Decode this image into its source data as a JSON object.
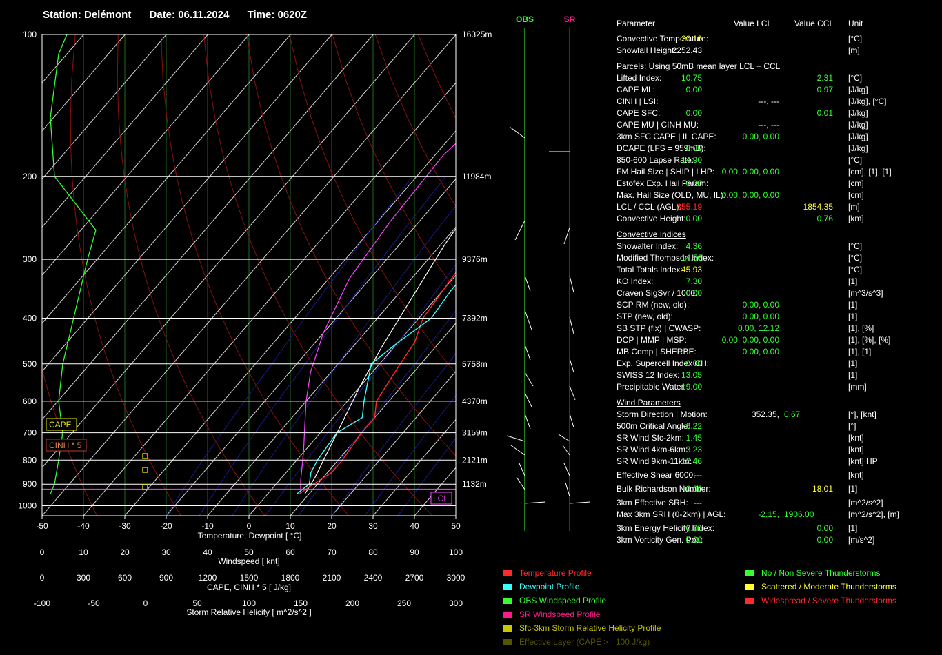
{
  "header": {
    "station": "Station: Delémont",
    "date": "Date: 06.11.2024",
    "time": "Time: 0620Z"
  },
  "chart_data": {
    "type": "line",
    "title": "",
    "xlabel": "Temperature, Dewpoint [ °C]",
    "x_ticks": [
      "-50",
      "-40",
      "-30",
      "-20",
      "-10",
      "0",
      "10",
      "20",
      "30",
      "40",
      "50"
    ],
    "p_ticks": [
      "100",
      "200",
      "300",
      "400",
      "500",
      "600",
      "700",
      "800",
      "900",
      "1000"
    ],
    "height_labels": [
      {
        "p": 100,
        "label": "16325m"
      },
      {
        "p": 200,
        "label": "11984m"
      },
      {
        "p": 300,
        "label": "9376m"
      },
      {
        "p": 400,
        "label": "7392m"
      },
      {
        "p": 500,
        "label": "5758m"
      },
      {
        "p": 600,
        "label": "4370m"
      },
      {
        "p": 700,
        "label": "3159m"
      },
      {
        "p": 800,
        "label": "2121m"
      },
      {
        "p": 900,
        "label": "1132m"
      }
    ],
    "xlim": [
      -50,
      50
    ],
    "plim": [
      100,
      1050
    ],
    "series": [
      {
        "name": "Temperature Profile",
        "color": "#ff2a2a",
        "points": [
          [
            7.6,
            945
          ],
          [
            9,
            900
          ],
          [
            11,
            850
          ],
          [
            11,
            800
          ],
          [
            10,
            700
          ],
          [
            10,
            650
          ],
          [
            7,
            600
          ],
          [
            5,
            500
          ],
          [
            4,
            450
          ],
          [
            1,
            400
          ],
          [
            -1,
            300
          ],
          [
            -2,
            270
          ],
          [
            3,
            230
          ],
          [
            12,
            200
          ],
          [
            20,
            170
          ],
          [
            30,
            140
          ],
          [
            37,
            120
          ],
          [
            50,
            105
          ]
        ]
      },
      {
        "name": "Dewpoint Profile",
        "color": "#33ffff",
        "points": [
          [
            7,
            945
          ],
          [
            8,
            900
          ],
          [
            6,
            850
          ],
          [
            5,
            800
          ],
          [
            4,
            700
          ],
          [
            7,
            650
          ],
          [
            4,
            600
          ],
          [
            -2,
            500
          ],
          [
            0,
            450
          ],
          [
            3,
            400
          ],
          [
            2,
            350
          ],
          [
            2,
            300
          ],
          [
            0,
            260
          ],
          [
            0,
            240
          ],
          [
            3,
            200
          ],
          [
            10,
            150
          ],
          [
            15,
            125
          ],
          [
            20,
            110
          ],
          [
            33,
            100
          ]
        ]
      },
      {
        "name": "OBS Windspeed Profile",
        "color": "#33ff33",
        "points": [
          [
            2,
            945
          ],
          [
            3,
            900
          ],
          [
            4,
            800
          ],
          [
            5,
            700
          ],
          [
            4,
            600
          ],
          [
            5,
            500
          ],
          [
            11,
            300
          ],
          [
            13,
            260
          ],
          [
            3,
            200
          ],
          [
            2,
            150
          ],
          [
            4,
            110
          ],
          [
            6,
            100
          ]
        ]
      }
    ],
    "parcel_curves": [
      {
        "color": "#ff44ff",
        "points": [
          [
            8,
            945
          ],
          [
            5,
            880
          ],
          [
            0,
            770
          ],
          [
            -5,
            680
          ],
          [
            -10,
            600
          ],
          [
            -15,
            520
          ],
          [
            -20,
            430
          ],
          [
            -25,
            330
          ],
          [
            -27,
            250
          ],
          [
            -28,
            180
          ],
          [
            -25,
            140
          ],
          [
            -20,
            100
          ]
        ]
      },
      {
        "color": "#ffffff",
        "points": [
          [
            9,
            945
          ],
          [
            8,
            870
          ],
          [
            6,
            780
          ],
          [
            3,
            660
          ],
          [
            0,
            560
          ],
          [
            -3,
            460
          ],
          [
            -6,
            360
          ],
          [
            -9,
            280
          ],
          [
            -11,
            220
          ],
          [
            -11,
            170
          ],
          [
            -9,
            130
          ],
          [
            -5,
            100
          ]
        ]
      }
    ],
    "cape_labels": {
      "cape": "CAPE",
      "cinh": "CINH * 5",
      "lcl": "LCL"
    },
    "axes": {
      "windspeed": {
        "label": "Windspeed [ knt]",
        "ticks": [
          "0",
          "10",
          "20",
          "30",
          "40",
          "50",
          "60",
          "70",
          "80",
          "90",
          "100"
        ]
      },
      "cape": {
        "label": "CAPE, CINH * 5 [ J/kg]",
        "ticks": [
          "0",
          "300",
          "600",
          "900",
          "1200",
          "1500",
          "1800",
          "2100",
          "2400",
          "2700",
          "3000"
        ]
      },
      "srh": {
        "label": "Storm Relative Helicity [ m^2/s^2 ]",
        "ticks": [
          "-100",
          "-50",
          "0",
          "50",
          "100",
          "150",
          "200",
          "250",
          "300"
        ]
      }
    }
  },
  "wind_columns": {
    "obs_label": "OBS",
    "sr_label": "SR"
  },
  "params": {
    "header": {
      "parameter": "Parameter",
      "lcl": "Value LCL",
      "ccl": "Value CCL",
      "unit": "Unit"
    },
    "sections": [
      {
        "title": "",
        "rows": [
          {
            "label": "Convective Temperature:",
            "v1": "20.10",
            "c1": "#ffff33",
            "v2": "",
            "c2": "",
            "unit": "[°C]"
          },
          {
            "label": "Snowfall Height:",
            "v1": "2252.43",
            "c1": "#ffffff",
            "v2": "",
            "c2": "",
            "unit": "[m]"
          }
        ]
      },
      {
        "title": "Parcels: Using 50mB mean layer LCL + CCL",
        "rows": [
          {
            "label": "Lifted Index:",
            "v1": "10.75",
            "c1": "#33ff33",
            "v2": "2.31",
            "c2": "#33ff33",
            "unit": "[°C]"
          },
          {
            "label": "CAPE ML:",
            "v1": "0.00",
            "c1": "#33ff33",
            "v2": "0.97",
            "c2": "#33ff33",
            "unit": "[J/kg]"
          },
          {
            "label": "CINH | LSI:",
            "v1": "---,  ---",
            "c1": "#ffffff",
            "v2": "",
            "c2": "",
            "unit": "[J/kg], [°C]",
            "wide": true
          },
          {
            "label": "CAPE SFC:",
            "v1": "0.00",
            "c1": "#33ff33",
            "v2": "0.01",
            "c2": "#33ff33",
            "unit": "[J/kg]"
          },
          {
            "label": "CAPE MU | CINH MU:",
            "v1": "---,  ---",
            "c1": "#ffffff",
            "v2": "",
            "c2": "",
            "unit": "[J/kg]",
            "wide": true
          },
          {
            "label": "3km SFC CAPE | IL CAPE:",
            "v1": "0.00,  0.00",
            "c1": "#33ff33",
            "v2": "",
            "c2": "",
            "unit": "[J/kg]",
            "wide": true
          },
          {
            "label": "DCAPE (LFS = 959mB):",
            "v1": "0.00",
            "c1": "#33ff33",
            "v2": "",
            "c2": "",
            "unit": "[J/kg]"
          },
          {
            "label": "850-600 Lapse Rate:",
            "v1": "14.90",
            "c1": "#33ff33",
            "v2": "",
            "c2": "",
            "unit": "[°C]"
          },
          {
            "label": "FM Hail Size | SHIP | LHP:",
            "v1": "0.00,  0.00,  0.00",
            "c1": "#33ff33",
            "v2": "",
            "c2": "",
            "unit": "[cm], [1], [1]",
            "wide": true
          },
          {
            "label": "Estofex Exp. Hail Param:",
            "v1": "0.00",
            "c1": "#33ff33",
            "v2": "",
            "c2": "",
            "unit": "[cm]"
          },
          {
            "label": "Max. Hail Size (OLD, MU, IL):",
            "v1": "0.00,  0.00,  0.00",
            "c1": "#33ff33",
            "v2": "",
            "c2": "",
            "unit": "[cm]",
            "wide": true
          },
          {
            "label": "LCL / CCL (AGL):",
            "v1": "355.19",
            "c1": "#ff2a2a",
            "v2": "1854.35",
            "c2": "#ffff33",
            "unit": "[m]"
          },
          {
            "label": "Convective Height:",
            "v1": "0.00",
            "c1": "#33ff33",
            "v2": "0.76",
            "c2": "#33ff33",
            "unit": "[km]"
          }
        ]
      },
      {
        "title": "Convective Indices",
        "rows": [
          {
            "label": "Showalter Index:",
            "v1": "4.36",
            "c1": "#33ff33",
            "v2": "",
            "c2": "",
            "unit": "[°C]"
          },
          {
            "label": "Modified Thompson Index:",
            "v1": "14.56",
            "c1": "#33ff33",
            "v2": "",
            "c2": "",
            "unit": "[°C]"
          },
          {
            "label": "Total Totals Index:",
            "v1": "45.93",
            "c1": "#ffff33",
            "v2": "",
            "c2": "",
            "unit": "[°C]"
          },
          {
            "label": "KO Index:",
            "v1": "7.30",
            "c1": "#33ff33",
            "v2": "",
            "c2": "",
            "unit": "[1]"
          },
          {
            "label": "Craven SigSvr / 1000:",
            "v1": "0.00",
            "c1": "#33ff33",
            "v2": "",
            "c2": "",
            "unit": "[m^3/s^3]"
          },
          {
            "label": "SCP RM (new, old):",
            "v1": "0.00,  0.00",
            "c1": "#33ff33",
            "v2": "",
            "c2": "",
            "unit": "[1]",
            "wide": true
          },
          {
            "label": "STP (new, old):",
            "v1": "0.00,  0.00",
            "c1": "#33ff33",
            "v2": "",
            "c2": "",
            "unit": "[1]",
            "wide": true
          },
          {
            "label": "SB STP (fix) | CWASP:",
            "v1": "0.00,  12.12",
            "c1": "#33ff33",
            "v2": "",
            "c2": "",
            "unit": "[1], [%]",
            "wide": true
          },
          {
            "label": "DCP | MMP | MSP:",
            "v1": "0.00,  0.00,  0.00",
            "c1": "#33ff33",
            "v2": "",
            "c2": "",
            "unit": "[1], [%], [%]",
            "wide": true
          },
          {
            "label": "MB Comp | SHERBE:",
            "v1": "0.00,  0.00",
            "c1": "#33ff33",
            "v2": "",
            "c2": "",
            "unit": "[1], [1]",
            "wide": true
          },
          {
            "label": "Exp. Supercell Index CH:",
            "v1": "0.00",
            "c1": "#33ff33",
            "v2": "",
            "c2": "",
            "unit": "[1]"
          },
          {
            "label": "SWISS 12 Index:",
            "v1": "13.05",
            "c1": "#33ff33",
            "v2": "",
            "c2": "",
            "unit": "[1]"
          },
          {
            "label": "Precipitable Water:",
            "v1": "19.00",
            "c1": "#33ff33",
            "v2": "",
            "c2": "",
            "unit": "[mm]"
          }
        ]
      },
      {
        "title": "Wind Parameters",
        "rows": [
          {
            "label": "Storm Direction | Motion:",
            "v1": "352.35,  ",
            "c1": "#ffffff",
            "v2x": "0.67",
            "unit": "[°], [knt]",
            "wide": true
          },
          {
            "label": "500m Critical Angle:",
            "v1": "6.22",
            "c1": "#33ff33",
            "v2": "",
            "c2": "",
            "unit": "[°]"
          },
          {
            "label": "SR Wind Sfc-2km:",
            "v1": "1.45",
            "c1": "#33ff33",
            "v2": "",
            "c2": "",
            "unit": "[knt]"
          },
          {
            "label": "SR Wind 4km-6km:",
            "v1": "3.23",
            "c1": "#33ff33",
            "v2": "",
            "c2": "",
            "unit": "[knt]"
          },
          {
            "label": "SR Wind 9km-11km:",
            "v1": "12.46",
            "c1": "#33ff33",
            "v2": "",
            "c2": "",
            "unit": "[knt] HP"
          },
          {
            "gap": true,
            "label": "Effective Shear 6000:",
            "v1": "---",
            "c1": "#ffffff",
            "v2": "",
            "c2": "",
            "unit": "[knt]"
          },
          {
            "gap": true,
            "label": "Bulk Richardson Number:",
            "v1": "0.00",
            "c1": "#33ff33",
            "v2": "18.01",
            "c2": "#ffff33",
            "unit": "[1]"
          },
          {
            "gap": true,
            "label": "3km Effective SRH:",
            "v1": "---",
            "c1": "#ffffff",
            "v2": "",
            "c2": "",
            "unit": "[m^2/s^2]"
          },
          {
            "label": "Max 3km SRH (0-2km) | AGL:",
            "v1": "-2.15,  ",
            "c1": "#33ff33",
            "v2x": "1906.00",
            "unit": "[m^2/s^2], [m]",
            "wide": true
          },
          {
            "gap": true,
            "label": "3km Energy Helicity Index:",
            "v1": "0.00",
            "c1": "#33ff33",
            "v2": "0.00",
            "c2": "#33ff33",
            "unit": "[1]"
          },
          {
            "label": "3km Vorticity Gen. Pot.:",
            "v1": "0.00",
            "c1": "#33ff33",
            "v2": "0.00",
            "c2": "#33ff33",
            "unit": "[m/s^2]"
          }
        ]
      }
    ]
  },
  "legend_left": [
    {
      "label": "Temperature Profile",
      "color": "#ff2a2a",
      "text_color": "#ff2a2a"
    },
    {
      "label": "Dewpoint Profile",
      "color": "#33ffff",
      "text_color": "#33ffff"
    },
    {
      "label": "OBS Windspeed Profile",
      "color": "#33ff33",
      "text_color": "#33ff33"
    },
    {
      "label": "SR Windspeed Profile",
      "color": "#ff1a8c",
      "text_color": "#ff1a8c"
    },
    {
      "label": "Sfc-3km Storm Relative Helicity Profile",
      "color": "#c8c800",
      "text_color": "#c8c800"
    },
    {
      "label": "Effective Layer (CAPE >= 100 J/kg)",
      "color": "#555500",
      "text_color": "#555500"
    }
  ],
  "legend_right": [
    {
      "label": "No / Non Severe Thunderstorms",
      "color": "#33ff33",
      "text_color": "#33ff33"
    },
    {
      "label": "Scattered / Moderate Thunderstorms",
      "color": "#ffff33",
      "text_color": "#ffff33"
    },
    {
      "label": "Widespread / Severe Thunderstorms",
      "color": "#ff2a2a",
      "text_color": "#ff2a2a"
    }
  ]
}
